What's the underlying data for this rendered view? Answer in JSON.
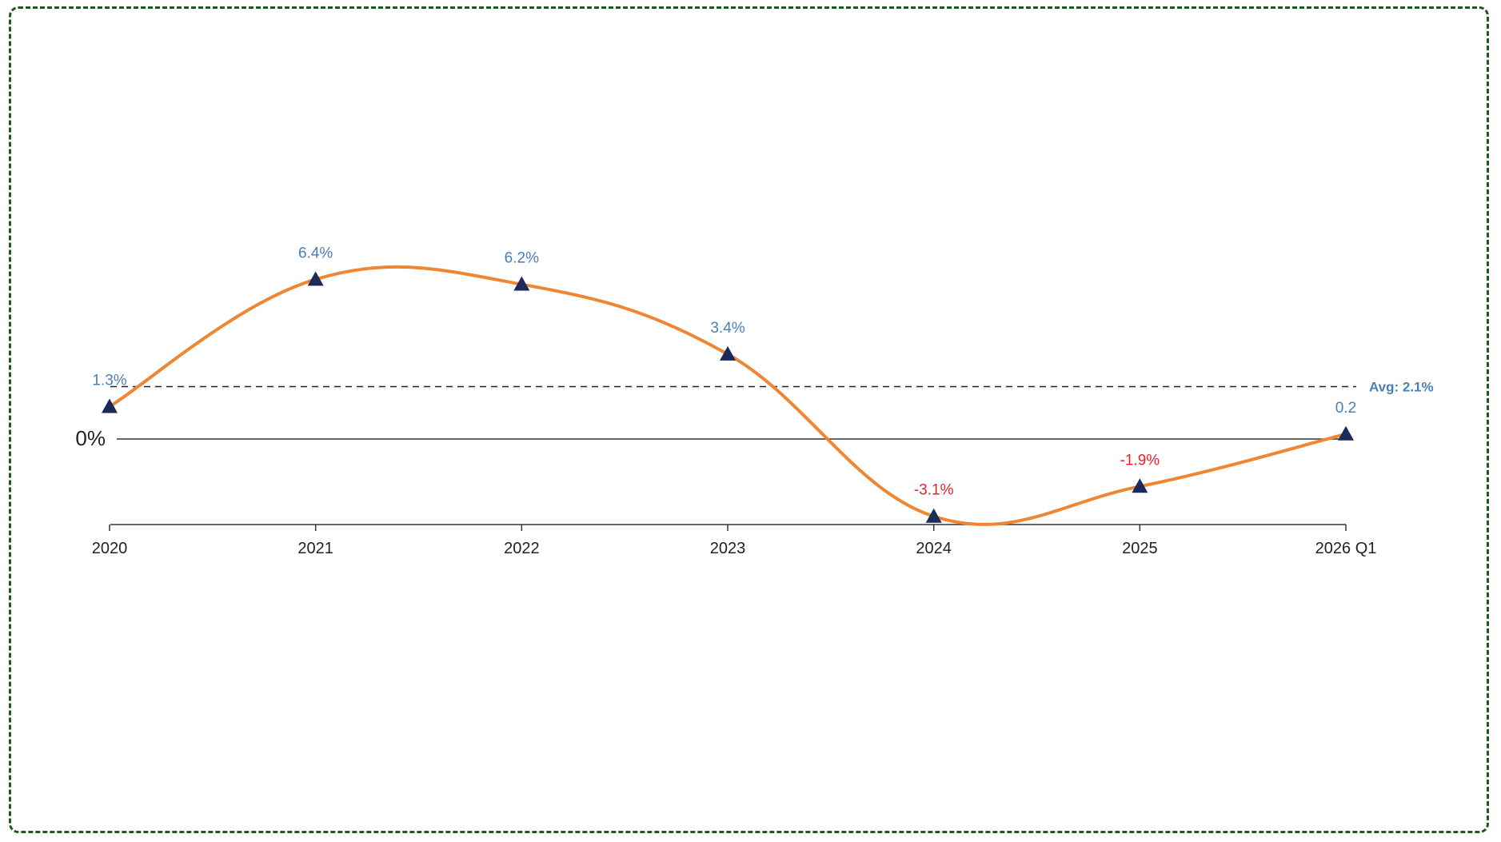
{
  "chart_data": {
    "type": "line",
    "title": "",
    "xlabel": "",
    "ylabel": "",
    "categories": [
      "2020",
      "2021",
      "2022",
      "2023",
      "2024",
      "2025",
      "2026 Q1"
    ],
    "series": [
      {
        "name": "",
        "values": [
          1.3,
          6.4,
          6.2,
          3.4,
          -3.1,
          -1.9,
          0.2
        ],
        "labels": [
          "1.3%",
          "6.4%",
          "6.2%",
          "3.4%",
          "-3.1%",
          "-1.9%",
          "0.2"
        ],
        "color": "#ee8633",
        "marker": "triangle",
        "marker_color": "#1a2a5a"
      }
    ],
    "zero_line_label": "0%",
    "average": {
      "value": 2.1,
      "label": "Avg: 2.1%"
    },
    "ylim": [
      -3.5,
      12
    ],
    "grid": false,
    "legend": "none",
    "colors": {
      "positive_label": "#4a7fb5",
      "negative_label": "#e8202a",
      "average_label": "#4a7fb5",
      "frame": "#1e5a1e"
    }
  }
}
